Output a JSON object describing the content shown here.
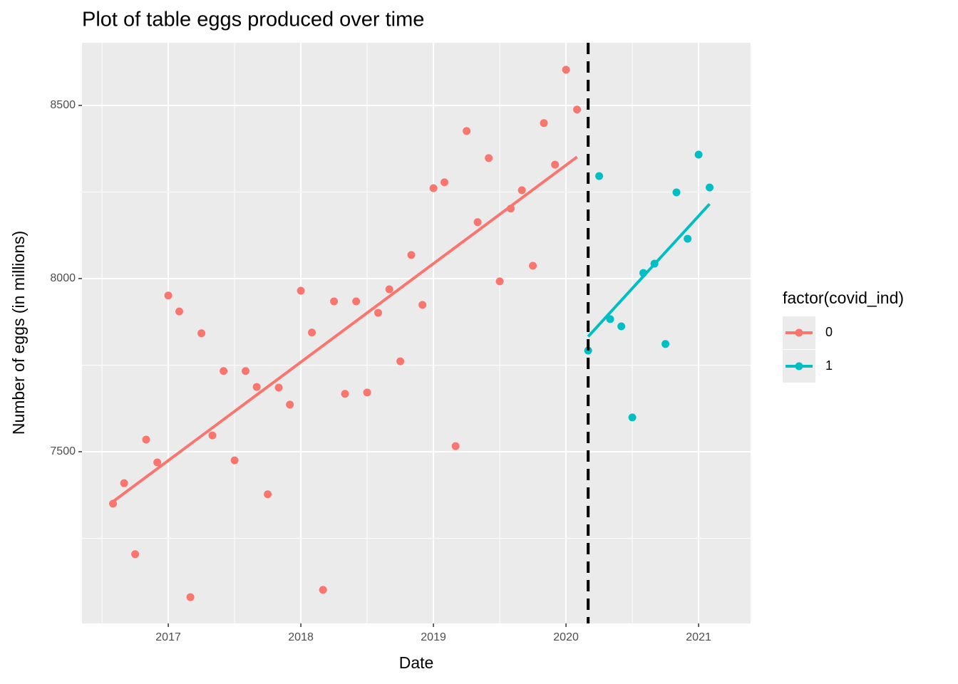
{
  "chart_data": {
    "type": "scatter",
    "title": "Plot of table eggs produced over time",
    "x_label": "Date",
    "y_label": "Number of eggs (in millions)",
    "legend_title": "factor(covid_ind)",
    "legend": "right",
    "grid": true,
    "smooth": "lm",
    "vline_x": 2020.167,
    "xlim": [
      2016.349,
      2021.392
    ],
    "ylim": [
      7004,
      8681
    ],
    "xticks": [
      2017,
      2018,
      2019,
      2020,
      2021
    ],
    "xminor": [
      2016.5,
      2017.5,
      2018.5,
      2019.5,
      2020.5
    ],
    "yticks": [
      7500,
      8000,
      8500
    ],
    "yminor": [
      7250,
      7750,
      8250
    ],
    "series": [
      {
        "name": "0",
        "color": "#F8766D",
        "x": [
          2016.583,
          2016.667,
          2016.75,
          2016.833,
          2016.917,
          2017.0,
          2017.083,
          2017.167,
          2017.25,
          2017.333,
          2017.417,
          2017.5,
          2017.583,
          2017.667,
          2017.75,
          2017.833,
          2017.917,
          2018.0,
          2018.083,
          2018.167,
          2018.25,
          2018.333,
          2018.417,
          2018.5,
          2018.583,
          2018.667,
          2018.75,
          2018.833,
          2018.917,
          2019.0,
          2019.083,
          2019.167,
          2019.25,
          2019.333,
          2019.417,
          2019.5,
          2019.583,
          2019.667,
          2019.75,
          2019.833,
          2019.917,
          2020.0,
          2020.083
        ],
        "values": [
          7350,
          7409,
          7204,
          7535,
          7469,
          7951,
          7905,
          7080,
          7842,
          7547,
          7733,
          7475,
          7733,
          7687,
          7377,
          7685,
          7636,
          7965,
          7844,
          7101,
          7934,
          7667,
          7934,
          7671,
          7901,
          7969,
          7761,
          8068,
          7924,
          8261,
          8278,
          7516,
          8426,
          8163,
          8348,
          7992,
          8202,
          8255,
          8037,
          8449,
          8329,
          8603,
          8488
        ]
      },
      {
        "name": "1",
        "color": "#00BFC4",
        "x": [
          2020.167,
          2020.25,
          2020.333,
          2020.417,
          2020.5,
          2020.583,
          2020.667,
          2020.75,
          2020.833,
          2020.917,
          2021.0,
          2021.083
        ],
        "values": [
          7792,
          8296,
          7883,
          7862,
          7599,
          8016,
          8043,
          7811,
          8249,
          8115,
          8358,
          8263
        ]
      }
    ]
  }
}
